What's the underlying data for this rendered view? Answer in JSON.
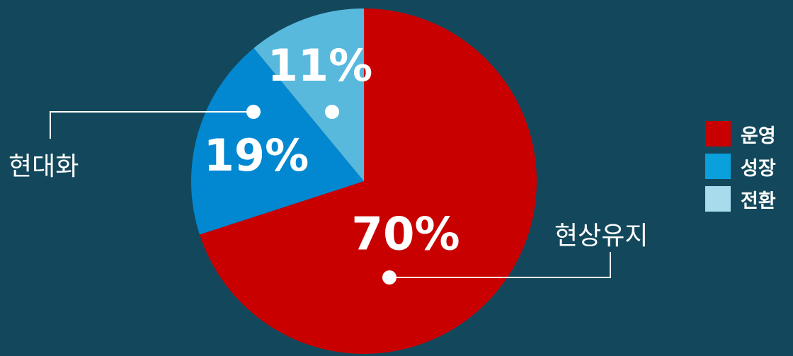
{
  "chart_data": {
    "type": "pie",
    "start_angle": "12 o'clock",
    "direction": "clockwise",
    "slices": [
      {
        "key": "operate",
        "legend": "운영",
        "callout": "현상유지",
        "value": 70,
        "label": "70%",
        "color": "#c90000"
      },
      {
        "key": "grow",
        "legend": "성장",
        "callout": "현대화",
        "value": 19,
        "label": "19%",
        "color": "#0288d1"
      },
      {
        "key": "transform",
        "legend": "전환",
        "callout": "",
        "value": 11,
        "label": "11%",
        "color": "#58b9dd"
      }
    ],
    "legend_position": "right",
    "legend_colors": [
      "#c90000",
      "#0aa0dc",
      "#a8dbec"
    ]
  }
}
